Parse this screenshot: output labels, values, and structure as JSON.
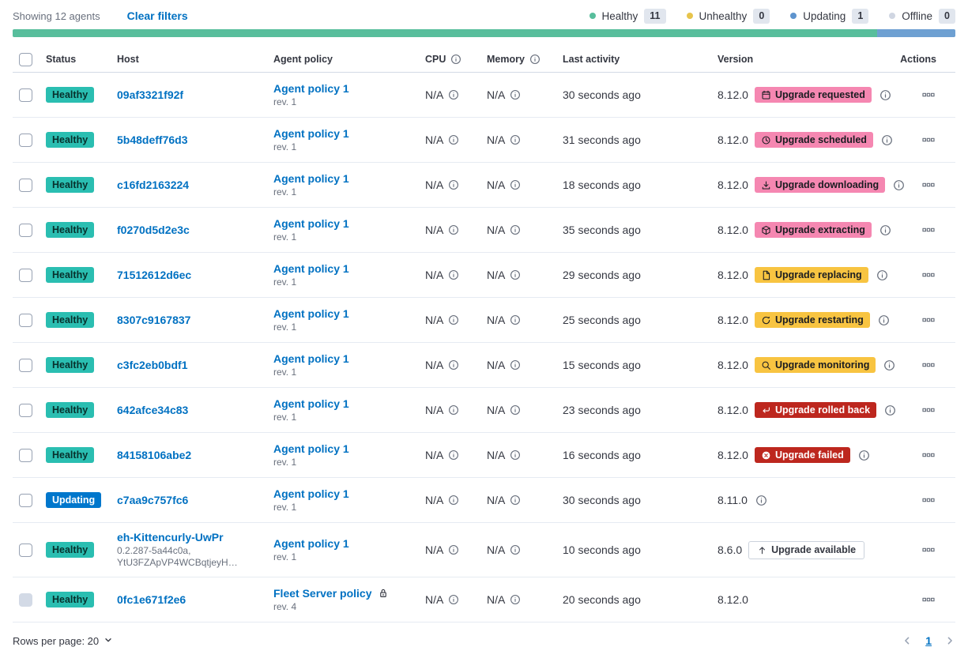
{
  "colors": {
    "link": "#0071C2",
    "healthy_badge": "#2ABEB1",
    "updating_badge": "#0077CC",
    "accent_badge": "#F587B1",
    "warning_badge": "#F8C441",
    "danger_badge": "#BD271E"
  },
  "toolbar": {
    "showing": "Showing 12 agents",
    "clear_filters": "Clear filters",
    "legend": [
      {
        "label": "Healthy",
        "count": "11",
        "color": "#58BE9C"
      },
      {
        "label": "Unhealthy",
        "count": "0",
        "color": "#E7C44C"
      },
      {
        "label": "Updating",
        "count": "1",
        "color": "#5E94CE"
      },
      {
        "label": "Offline",
        "count": "0",
        "color": "#D0D6E2"
      }
    ],
    "health_bar": [
      {
        "status": "healthy",
        "color": "#58BE9C",
        "fraction": 0.9167
      },
      {
        "status": "updating",
        "color": "#6EA0D2",
        "fraction": 0.0833
      }
    ]
  },
  "table": {
    "columns": [
      {
        "key": "status",
        "label": "Status"
      },
      {
        "key": "host",
        "label": "Host"
      },
      {
        "key": "policy",
        "label": "Agent policy"
      },
      {
        "key": "cpu",
        "label": "CPU",
        "info": true
      },
      {
        "key": "memory",
        "label": "Memory",
        "info": true
      },
      {
        "key": "activity",
        "label": "Last activity"
      },
      {
        "key": "version",
        "label": "Version"
      },
      {
        "key": "actions",
        "label": "Actions"
      }
    ],
    "rows": [
      {
        "status": {
          "label": "Healthy",
          "type": "healthy"
        },
        "host": {
          "name": "09af3321f92f"
        },
        "policy": {
          "name": "Agent policy 1",
          "rev": "rev. 1",
          "locked": false
        },
        "cpu": "N/A",
        "memory": "N/A",
        "last_activity": "30 seconds ago",
        "version": "8.12.0",
        "upgrade_badge": {
          "label": "Upgrade requested",
          "type": "accent",
          "icon": "calendar"
        },
        "version_info": true,
        "checkbox_disabled": false
      },
      {
        "status": {
          "label": "Healthy",
          "type": "healthy"
        },
        "host": {
          "name": "5b48deff76d3"
        },
        "policy": {
          "name": "Agent policy 1",
          "rev": "rev. 1",
          "locked": false
        },
        "cpu": "N/A",
        "memory": "N/A",
        "last_activity": "31 seconds ago",
        "version": "8.12.0",
        "upgrade_badge": {
          "label": "Upgrade scheduled",
          "type": "accent",
          "icon": "clock"
        },
        "version_info": true,
        "checkbox_disabled": false
      },
      {
        "status": {
          "label": "Healthy",
          "type": "healthy"
        },
        "host": {
          "name": "c16fd2163224"
        },
        "policy": {
          "name": "Agent policy 1",
          "rev": "rev. 1",
          "locked": false
        },
        "cpu": "N/A",
        "memory": "N/A",
        "last_activity": "18 seconds ago",
        "version": "8.12.0",
        "upgrade_badge": {
          "label": "Upgrade downloading",
          "type": "accent",
          "icon": "download"
        },
        "version_info": true,
        "checkbox_disabled": false
      },
      {
        "status": {
          "label": "Healthy",
          "type": "healthy"
        },
        "host": {
          "name": "f0270d5d2e3c"
        },
        "policy": {
          "name": "Agent policy 1",
          "rev": "rev. 1",
          "locked": false
        },
        "cpu": "N/A",
        "memory": "N/A",
        "last_activity": "35 seconds ago",
        "version": "8.12.0",
        "upgrade_badge": {
          "label": "Upgrade extracting",
          "type": "accent",
          "icon": "package"
        },
        "version_info": true,
        "checkbox_disabled": false
      },
      {
        "status": {
          "label": "Healthy",
          "type": "healthy"
        },
        "host": {
          "name": "71512612d6ec"
        },
        "policy": {
          "name": "Agent policy 1",
          "rev": "rev. 1",
          "locked": false
        },
        "cpu": "N/A",
        "memory": "N/A",
        "last_activity": "29 seconds ago",
        "version": "8.12.0",
        "upgrade_badge": {
          "label": "Upgrade replacing",
          "type": "warning",
          "icon": "document"
        },
        "version_info": true,
        "checkbox_disabled": false
      },
      {
        "status": {
          "label": "Healthy",
          "type": "healthy"
        },
        "host": {
          "name": "8307c9167837"
        },
        "policy": {
          "name": "Agent policy 1",
          "rev": "rev. 1",
          "locked": false
        },
        "cpu": "N/A",
        "memory": "N/A",
        "last_activity": "25 seconds ago",
        "version": "8.12.0",
        "upgrade_badge": {
          "label": "Upgrade restarting",
          "type": "warning",
          "icon": "refresh"
        },
        "version_info": true,
        "checkbox_disabled": false
      },
      {
        "status": {
          "label": "Healthy",
          "type": "healthy"
        },
        "host": {
          "name": "c3fc2eb0bdf1"
        },
        "policy": {
          "name": "Agent policy 1",
          "rev": "rev. 1",
          "locked": false
        },
        "cpu": "N/A",
        "memory": "N/A",
        "last_activity": "15 seconds ago",
        "version": "8.12.0",
        "upgrade_badge": {
          "label": "Upgrade monitoring",
          "type": "warning",
          "icon": "inspect"
        },
        "version_info": true,
        "checkbox_disabled": false
      },
      {
        "status": {
          "label": "Healthy",
          "type": "healthy"
        },
        "host": {
          "name": "642afce34c83"
        },
        "policy": {
          "name": "Agent policy 1",
          "rev": "rev. 1",
          "locked": false
        },
        "cpu": "N/A",
        "memory": "N/A",
        "last_activity": "23 seconds ago",
        "version": "8.12.0",
        "upgrade_badge": {
          "label": "Upgrade rolled back",
          "type": "danger",
          "icon": "return-arrow"
        },
        "version_info": true,
        "checkbox_disabled": false
      },
      {
        "status": {
          "label": "Healthy",
          "type": "healthy"
        },
        "host": {
          "name": "84158106abe2"
        },
        "policy": {
          "name": "Agent policy 1",
          "rev": "rev. 1",
          "locked": false
        },
        "cpu": "N/A",
        "memory": "N/A",
        "last_activity": "16 seconds ago",
        "version": "8.12.0",
        "upgrade_badge": {
          "label": "Upgrade failed",
          "type": "danger",
          "icon": "cross-in-circle"
        },
        "version_info": true,
        "checkbox_disabled": false
      },
      {
        "status": {
          "label": "Updating",
          "type": "updating"
        },
        "host": {
          "name": "c7aa9c757fc6"
        },
        "policy": {
          "name": "Agent policy 1",
          "rev": "rev. 1",
          "locked": false
        },
        "cpu": "N/A",
        "memory": "N/A",
        "last_activity": "30 seconds ago",
        "version": "8.11.0",
        "upgrade_badge": null,
        "version_info": true,
        "checkbox_disabled": false
      },
      {
        "status": {
          "label": "Healthy",
          "type": "healthy"
        },
        "host": {
          "name": "eh-Kittencurly-UwPr",
          "sub": [
            "0.2.287-5a44c0a,",
            "YtU3FZApVP4WCBqtjeyH…"
          ]
        },
        "policy": {
          "name": "Agent policy 1",
          "rev": "rev. 1",
          "locked": false
        },
        "cpu": "N/A",
        "memory": "N/A",
        "last_activity": "10 seconds ago",
        "version": "8.6.0",
        "upgrade_badge": {
          "label": "Upgrade available",
          "type": "hollow",
          "icon": "arrow-up"
        },
        "version_info": false,
        "checkbox_disabled": false
      },
      {
        "status": {
          "label": "Healthy",
          "type": "healthy"
        },
        "host": {
          "name": "0fc1e671f2e6"
        },
        "policy": {
          "name": "Fleet Server policy",
          "rev": "rev. 4",
          "locked": true
        },
        "cpu": "N/A",
        "memory": "N/A",
        "last_activity": "20 seconds ago",
        "version": "8.12.0",
        "upgrade_badge": null,
        "version_info": false,
        "checkbox_disabled": true
      }
    ]
  },
  "footer": {
    "rows_per_page_label": "Rows per page: 20",
    "current_page": "1"
  }
}
